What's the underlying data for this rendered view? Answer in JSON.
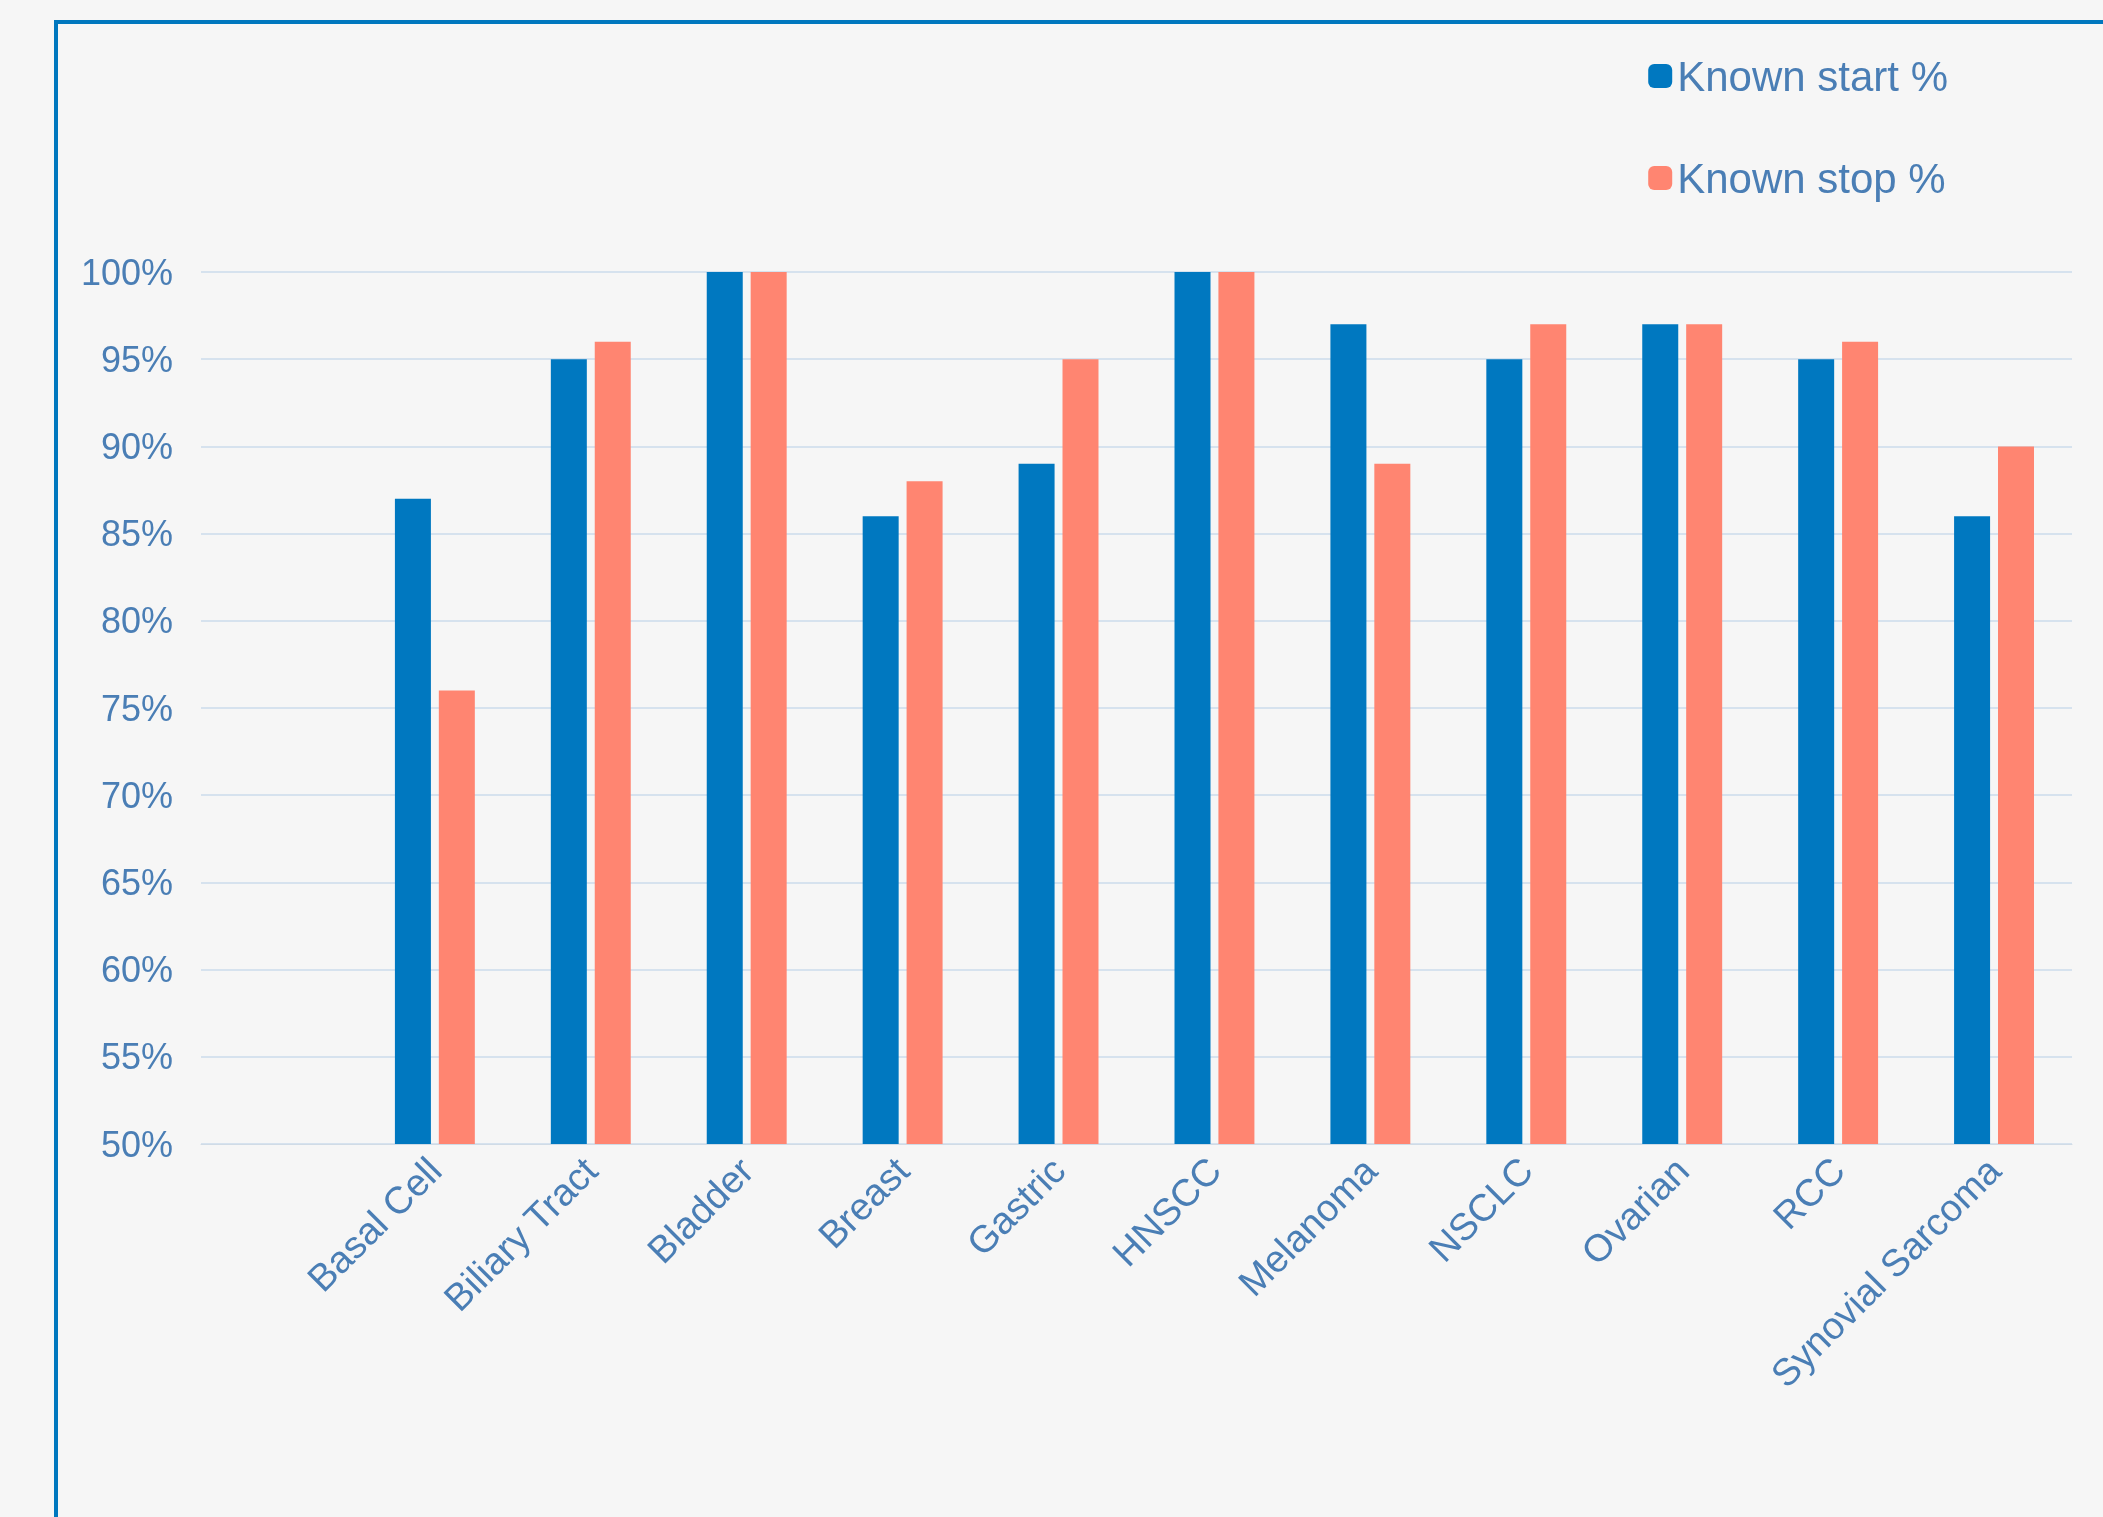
{
  "chart_data": {
    "type": "bar",
    "categories": [
      null,
      "Basal Cell",
      "Biliary Tract",
      "Bladder",
      "Breast",
      "Gastric",
      "HNSCC",
      "Melanoma",
      "NSCLC",
      "Ovarian",
      "RCC",
      "Synovial Sarcoma"
    ],
    "series": [
      {
        "name": "Known start %",
        "color": "#0078c0",
        "values": [
          null,
          87,
          95,
          100,
          86,
          89,
          100,
          97,
          95,
          97,
          95,
          86
        ]
      },
      {
        "name": "Known stop %",
        "color": "#ff8571",
        "values": [
          null,
          76,
          96,
          100,
          88,
          95,
          100,
          89,
          97,
          97,
          96,
          90
        ]
      }
    ],
    "ylim": [
      50,
      100
    ],
    "yticks": [
      {
        "value": 50,
        "label": "50%"
      },
      {
        "value": 55,
        "label": "55%"
      },
      {
        "value": 60,
        "label": "60%"
      },
      {
        "value": 65,
        "label": "65%"
      },
      {
        "value": 70,
        "label": "70%"
      },
      {
        "value": 75,
        "label": "75%"
      },
      {
        "value": 80,
        "label": "80%"
      },
      {
        "value": 85,
        "label": "85%"
      },
      {
        "value": 90,
        "label": "90%"
      },
      {
        "value": 95,
        "label": "95%"
      },
      {
        "value": 100,
        "label": "100%"
      }
    ],
    "grid": "y",
    "legend": "top right"
  }
}
